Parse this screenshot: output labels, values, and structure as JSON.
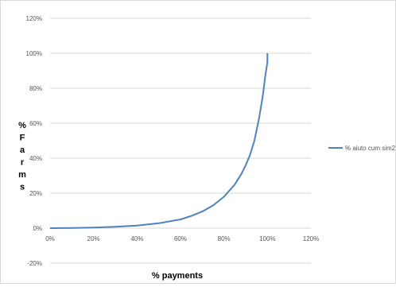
{
  "chart_data": {
    "type": "line",
    "title": "",
    "xlabel": "% payments",
    "ylabel": "% Farms",
    "ylabel_letters": [
      "%",
      "F",
      "a",
      "r",
      "m",
      "s"
    ],
    "xlim": [
      0,
      120
    ],
    "ylim": [
      -20,
      120
    ],
    "x_ticks": [
      "0%",
      "20%",
      "40%",
      "60%",
      "80%",
      "100%",
      "120%"
    ],
    "y_ticks": [
      "-20%",
      "0%",
      "20%",
      "40%",
      "60%",
      "80%",
      "100%",
      "120%"
    ],
    "grid": "horizontal",
    "legend_position": "right",
    "series": [
      {
        "name": "% aiuto cum sim2",
        "color": "#4f81bd",
        "x": [
          0,
          10,
          20,
          30,
          40,
          50,
          60,
          65,
          70,
          75,
          80,
          85,
          88,
          90,
          92,
          94,
          95,
          96,
          97,
          98,
          99,
          100,
          100
        ],
        "y": [
          0,
          0.1,
          0.3,
          0.8,
          1.5,
          2.8,
          5,
          7,
          9.5,
          13,
          18,
          25,
          31,
          36,
          42,
          50,
          56,
          62,
          69,
          77,
          87,
          95,
          100
        ]
      }
    ]
  }
}
